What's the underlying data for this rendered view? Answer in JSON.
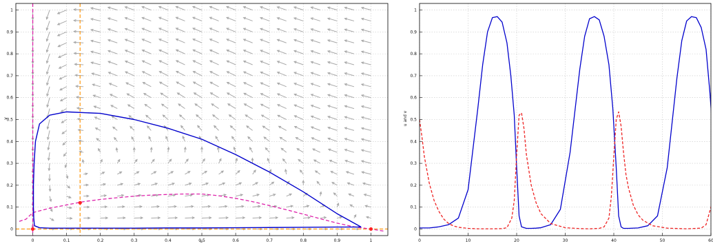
{
  "chart_data": [
    {
      "type": "phase-portrait",
      "xlabel": "u",
      "ylabel": "v",
      "xlim": [
        -0.05,
        1.05
      ],
      "ylim": [
        -0.03,
        1.03
      ],
      "xticks": [
        0,
        0.1,
        0.2,
        0.3,
        0.4,
        0.5,
        0.6,
        0.7,
        0.8,
        0.9,
        1
      ],
      "yticks": [
        0,
        0.1,
        0.2,
        0.3,
        0.4,
        0.5,
        0.6,
        0.7,
        0.8,
        0.9,
        1
      ],
      "grid": true,
      "colors": {
        "trajectory": "#0000cc",
        "u_nullcline": "#dd22aa",
        "v_nullcline": "#ffa020",
        "vector_field": "#a8a8a8",
        "equilibria": "#ff2222"
      },
      "equilibria": [
        {
          "u": 0,
          "v": 0
        },
        {
          "u": 0.14,
          "v": 0.12
        },
        {
          "u": 1,
          "v": 0
        }
      ],
      "v_nullclines_u": [
        0,
        0.14
      ],
      "u_nullcline_curve": {
        "u": [
          -0.04,
          -0.02,
          0,
          0.05,
          0.1,
          0.15,
          0.2,
          0.25,
          0.3,
          0.35,
          0.4,
          0.45,
          0.5,
          0.55,
          0.6,
          0.65,
          0.7,
          0.75,
          0.8,
          0.85,
          0.9,
          0.95,
          1.0,
          1.04
        ],
        "v": [
          0.035,
          0.045,
          0.075,
          0.095,
          0.11,
          0.125,
          0.135,
          0.143,
          0.15,
          0.155,
          0.158,
          0.16,
          0.16,
          0.152,
          0.14,
          0.125,
          0.107,
          0.088,
          0.068,
          0.047,
          0.027,
          0.01,
          0.0,
          -0.01
        ]
      },
      "trajectory": {
        "u": [
          0.97,
          0.9,
          0.8,
          0.7,
          0.6,
          0.5,
          0.4,
          0.3,
          0.2,
          0.1,
          0.05,
          0.02,
          0.008,
          0.004,
          0.002,
          0.002,
          0.003,
          0.005,
          0.02,
          0.05,
          0.1,
          0.2,
          0.3,
          0.4,
          0.5,
          0.6,
          0.7,
          0.8,
          0.9,
          0.94,
          0.96,
          0.97
        ],
        "v": [
          0.01,
          0.07,
          0.17,
          0.26,
          0.34,
          0.41,
          0.46,
          0.5,
          0.528,
          0.535,
          0.52,
          0.48,
          0.4,
          0.3,
          0.2,
          0.1,
          0.05,
          0.015,
          0.006,
          0.004,
          0.004,
          0.004,
          0.004,
          0.005,
          0.005,
          0.006,
          0.007,
          0.008,
          0.009,
          0.009,
          0.009,
          0.01
        ]
      }
    },
    {
      "type": "line",
      "xlabel": "",
      "ylabel": "u and v",
      "xlim": [
        0,
        60
      ],
      "ylim": [
        -0.03,
        1.03
      ],
      "xticks": [
        0,
        10,
        20,
        30,
        40,
        50,
        60
      ],
      "yticks": [
        0,
        0.1,
        0.2,
        0.3,
        0.4,
        0.5,
        0.6,
        0.7,
        0.8,
        0.9,
        1
      ],
      "grid": true,
      "series": [
        {
          "style": "solid",
          "color": "#0000cc",
          "x": [
            0,
            2,
            4,
            6,
            8,
            10,
            12,
            13,
            14,
            15,
            16,
            17,
            18,
            18.8,
            19.5,
            20,
            20.5,
            21,
            22,
            23,
            24,
            25,
            27,
            29,
            31,
            33,
            34,
            35,
            36,
            37,
            38,
            39,
            39.8,
            40.5,
            41,
            41.5,
            42,
            43,
            45,
            47,
            49,
            51,
            53,
            54,
            55,
            56,
            57,
            58,
            59,
            59.8,
            60.5
          ],
          "y": [
            0.005,
            0.005,
            0.01,
            0.02,
            0.05,
            0.18,
            0.55,
            0.75,
            0.9,
            0.965,
            0.97,
            0.945,
            0.85,
            0.7,
            0.52,
            0.28,
            0.06,
            0.01,
            0.003,
            0.003,
            0.004,
            0.006,
            0.02,
            0.09,
            0.35,
            0.73,
            0.88,
            0.96,
            0.97,
            0.955,
            0.88,
            0.75,
            0.55,
            0.28,
            0.06,
            0.01,
            0.003,
            0.003,
            0.005,
            0.015,
            0.06,
            0.28,
            0.69,
            0.86,
            0.95,
            0.97,
            0.965,
            0.92,
            0.82,
            0.62,
            0.4
          ]
        },
        {
          "style": "dashed",
          "color": "#ee2222",
          "x": [
            0,
            0.5,
            1,
            2,
            3,
            4,
            5,
            6,
            7,
            8,
            10,
            12,
            15,
            17,
            18,
            19,
            19.5,
            20,
            20.5,
            21,
            21.5,
            22,
            23,
            24,
            25,
            27,
            30,
            33,
            35,
            37,
            38,
            39,
            39.5,
            40,
            40.5,
            41,
            41.5,
            42,
            42.5,
            43,
            44,
            45,
            46,
            48,
            51,
            55,
            58,
            59,
            60,
            60.5
          ],
          "y": [
            0.5,
            0.42,
            0.33,
            0.21,
            0.13,
            0.08,
            0.045,
            0.025,
            0.014,
            0.008,
            0.003,
            0.001,
            0.001,
            0.002,
            0.006,
            0.05,
            0.13,
            0.34,
            0.52,
            0.53,
            0.46,
            0.34,
            0.2,
            0.12,
            0.07,
            0.025,
            0.006,
            0.002,
            0.001,
            0.003,
            0.01,
            0.05,
            0.15,
            0.33,
            0.5,
            0.535,
            0.47,
            0.35,
            0.25,
            0.19,
            0.11,
            0.065,
            0.04,
            0.015,
            0.004,
            0.001,
            0.004,
            0.02,
            0.1,
            0.2
          ]
        }
      ]
    }
  ]
}
